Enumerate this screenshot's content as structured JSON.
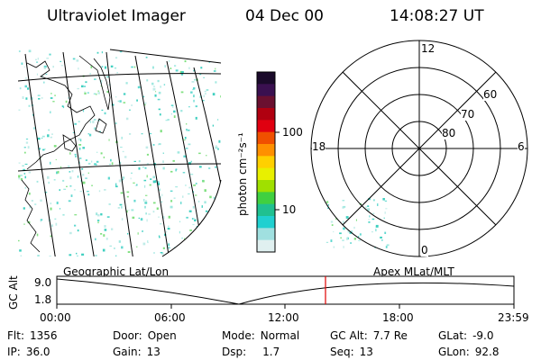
{
  "header": {
    "instrument": "Ultraviolet Imager",
    "date": "04 Dec 00",
    "time": "14:08:27 UT"
  },
  "colorbar": {
    "unit_label": "photon cm⁻²s⁻¹",
    "ticks": [
      "100",
      "10"
    ],
    "colors": [
      "#1a0a2a",
      "#3a1050",
      "#6a1030",
      "#b00010",
      "#e00010",
      "#f05000",
      "#ff9000",
      "#ffd000",
      "#e8f000",
      "#a0e000",
      "#40d040",
      "#20c090",
      "#20d0d0",
      "#a0e0e0",
      "#e0f0f0"
    ]
  },
  "polar": {
    "mlt_labels": {
      "top": "12",
      "bottom": "0",
      "left": "18",
      "right": "6"
    },
    "lat_labels": [
      "60",
      "70",
      "80"
    ]
  },
  "timeline": {
    "left_label": "Geographic Lat/Lon",
    "right_label": "Apex MLat/MLT",
    "y_axis_title": "GC Alt",
    "y_ticks": [
      "9.0",
      "1.8"
    ],
    "x_ticks": [
      "00:00",
      "06:00",
      "12:00",
      "18:00",
      "23:59"
    ],
    "marker_color": "#e00000"
  },
  "status": {
    "flt": {
      "label": "Flt:",
      "value": "1356"
    },
    "ip": {
      "label": "IP:",
      "value": "36.0"
    },
    "door": {
      "label": "Door:",
      "value": "Open"
    },
    "gain": {
      "label": "Gain:",
      "value": "13"
    },
    "mode": {
      "label": "Mode:",
      "value": "Normal"
    },
    "dsp": {
      "label": "Dsp:",
      "value": "1.7"
    },
    "gcalt": {
      "label": "GC Alt:",
      "value": "7.7 Re"
    },
    "seq": {
      "label": "Seq:",
      "value": "13"
    },
    "glat": {
      "label": "GLat:",
      "value": "-9.0"
    },
    "glon": {
      "label": "GLon:",
      "value": "92.8"
    }
  }
}
